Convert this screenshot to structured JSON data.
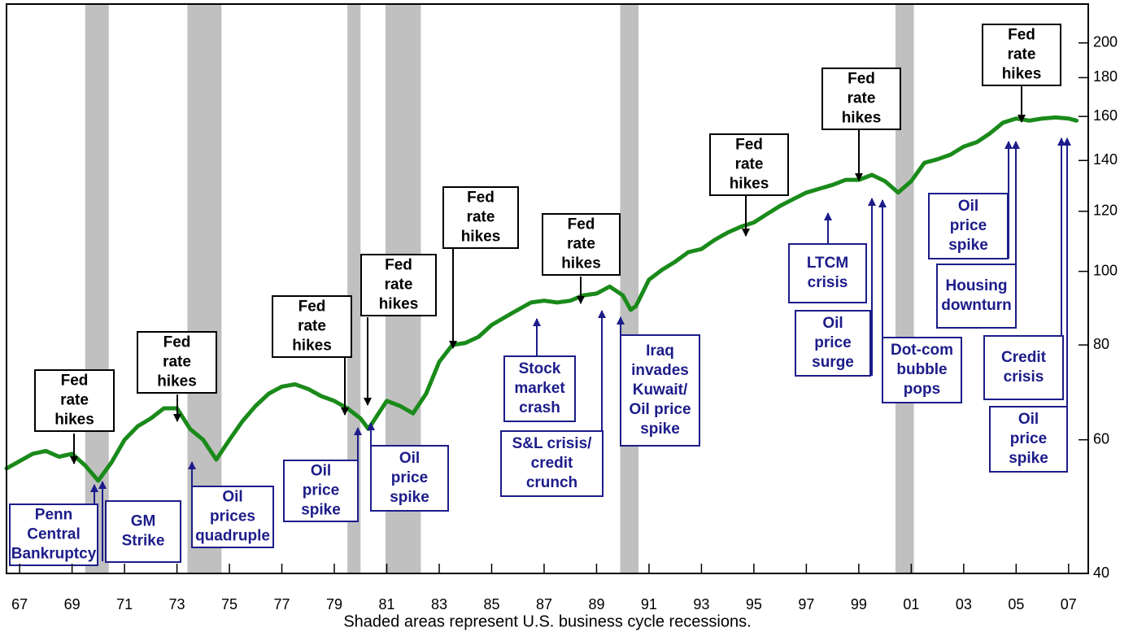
{
  "chart_data": {
    "type": "line",
    "caption": "Shaded areas represent U.S. business cycle recessions.",
    "x": [
      1966.5,
      1967.5,
      1968,
      1968.5,
      1969,
      1969.5,
      1970,
      1970.5,
      1971,
      1971.5,
      1972,
      1972.5,
      1973,
      1973.5,
      1974,
      1974.5,
      1975,
      1975.5,
      1976,
      1976.5,
      1977,
      1977.5,
      1978,
      1978.5,
      1979,
      1979.5,
      1980,
      1980.3,
      1981,
      1981.5,
      1982,
      1982.5,
      1983,
      1983.5,
      1984,
      1984.5,
      1985,
      1985.5,
      1986,
      1986.5,
      1987,
      1987.5,
      1988,
      1988.5,
      1989,
      1989.5,
      1990,
      1990.3,
      1990.5,
      1991,
      1991.5,
      1992,
      1992.5,
      1993,
      1993.5,
      1994,
      1994.5,
      1995,
      1995.5,
      1996,
      1996.5,
      1997,
      1997.5,
      1998,
      1998.5,
      1999,
      1999.5,
      2000,
      2000.5,
      2001,
      2001.5,
      2002,
      2002.5,
      2003,
      2003.5,
      2004,
      2004.5,
      2005,
      2005.5,
      2006,
      2006.5,
      2007,
      2007.3
    ],
    "values": [
      55,
      57.5,
      58,
      57,
      57.5,
      55.5,
      53,
      56,
      60,
      62.5,
      64,
      66,
      66,
      62,
      60,
      56.5,
      60,
      63.5,
      66.5,
      69,
      70.5,
      71,
      70,
      68.5,
      67.5,
      66,
      64,
      62,
      67.5,
      66.5,
      65,
      69,
      76,
      80,
      80.5,
      82,
      85,
      87,
      89,
      91,
      91.5,
      91,
      91.5,
      93,
      93.5,
      95.5,
      93,
      89,
      90,
      97.5,
      100.5,
      103,
      106,
      107,
      110,
      112.5,
      114.5,
      116,
      119,
      122,
      124.5,
      127,
      128.5,
      130,
      132,
      132,
      134,
      131.5,
      127,
      131.5,
      139,
      140.5,
      142.5,
      146,
      148,
      152,
      157,
      159,
      158,
      159,
      159.5,
      159,
      158
    ],
    "color": "#1a8a1a",
    "log_scale": true,
    "xlim": [
      1966.5,
      2007.75
    ],
    "ylim": [
      40,
      225
    ],
    "xticks": [
      {
        "value": 1967,
        "label": "67"
      },
      {
        "value": 1969,
        "label": "69"
      },
      {
        "value": 1971,
        "label": "71"
      },
      {
        "value": 1973,
        "label": "73"
      },
      {
        "value": 1975,
        "label": "75"
      },
      {
        "value": 1977,
        "label": "77"
      },
      {
        "value": 1979,
        "label": "79"
      },
      {
        "value": 1981,
        "label": "81"
      },
      {
        "value": 1983,
        "label": "83"
      },
      {
        "value": 1985,
        "label": "85"
      },
      {
        "value": 1987,
        "label": "87"
      },
      {
        "value": 1989,
        "label": "89"
      },
      {
        "value": 1991,
        "label": "91"
      },
      {
        "value": 1993,
        "label": "93"
      },
      {
        "value": 1995,
        "label": "95"
      },
      {
        "value": 1997,
        "label": "97"
      },
      {
        "value": 1999,
        "label": "99"
      },
      {
        "value": 2001,
        "label": "01"
      },
      {
        "value": 2003,
        "label": "03"
      },
      {
        "value": 2005,
        "label": "05"
      },
      {
        "value": 2007,
        "label": "07"
      }
    ],
    "yticks": [
      40,
      60,
      80,
      100,
      120,
      140,
      160,
      180,
      200
    ],
    "recession_color": "#c0c0c0",
    "recessions": [
      [
        1969.5,
        1970.4
      ],
      [
        1973.4,
        1974.7
      ],
      [
        1979.5,
        1980.0
      ],
      [
        1980.95,
        1982.3
      ],
      [
        1989.9,
        1990.6
      ],
      [
        2000.4,
        2001.1
      ]
    ],
    "annotations": [
      {
        "lines": [
          "Fed",
          "rate",
          "hikes"
        ],
        "color": "#000000"
      },
      {
        "lines": [
          "Fed",
          "rate",
          "hikes"
        ],
        "color": "#000000"
      },
      {
        "lines": [
          "Fed",
          "rate",
          "hikes"
        ],
        "color": "#000000"
      },
      {
        "lines": [
          "Fed",
          "rate",
          "hikes"
        ],
        "color": "#000000"
      },
      {
        "lines": [
          "Fed",
          "rate",
          "hikes"
        ],
        "color": "#000000"
      },
      {
        "lines": [
          "Fed",
          "rate",
          "hikes"
        ],
        "color": "#000000"
      },
      {
        "lines": [
          "Fed",
          "rate",
          "hikes"
        ],
        "color": "#000000"
      },
      {
        "lines": [
          "Fed",
          "rate",
          "hikes"
        ],
        "color": "#000000"
      },
      {
        "lines": [
          "Fed",
          "rate",
          "hikes"
        ],
        "color": "#000000"
      },
      {
        "lines": [
          "Penn",
          "Central",
          "Bankruptcy"
        ],
        "color": "#1c1c8a"
      },
      {
        "lines": [
          "GM",
          "Strike"
        ],
        "color": "#1c1c8a"
      },
      {
        "lines": [
          "Oil",
          "prices",
          "quadruple"
        ],
        "color": "#1c1c8a"
      },
      {
        "lines": [
          "Oil",
          "price",
          "spike"
        ],
        "color": "#1c1c8a"
      },
      {
        "lines": [
          "Oil",
          "price",
          "spike"
        ],
        "color": "#1c1c8a"
      },
      {
        "lines": [
          "Stock",
          "market",
          "crash"
        ],
        "color": "#1c1c8a"
      },
      {
        "lines": [
          "S&L crisis/",
          "credit",
          "crunch"
        ],
        "color": "#1c1c8a"
      },
      {
        "lines": [
          "Iraq",
          "invades",
          "Kuwait/",
          "Oil price",
          "spike"
        ],
        "color": "#1c1c8a"
      },
      {
        "lines": [
          "LTCM",
          "crisis"
        ],
        "color": "#1c1c8a"
      },
      {
        "lines": [
          "Oil",
          "price",
          "surge"
        ],
        "color": "#1c1c8a"
      },
      {
        "lines": [
          "Dot-com",
          "bubble",
          "pops"
        ],
        "color": "#1c1c8a"
      },
      {
        "lines": [
          "Oil",
          "price",
          "spike"
        ],
        "color": "#1c1c8a"
      },
      {
        "lines": [
          "Housing",
          "downturn"
        ],
        "color": "#1c1c8a"
      },
      {
        "lines": [
          "Credit",
          "crisis"
        ],
        "color": "#1c1c8a"
      },
      {
        "lines": [
          "Oil",
          "price",
          "spike"
        ],
        "color": "#1c1c8a"
      }
    ]
  }
}
